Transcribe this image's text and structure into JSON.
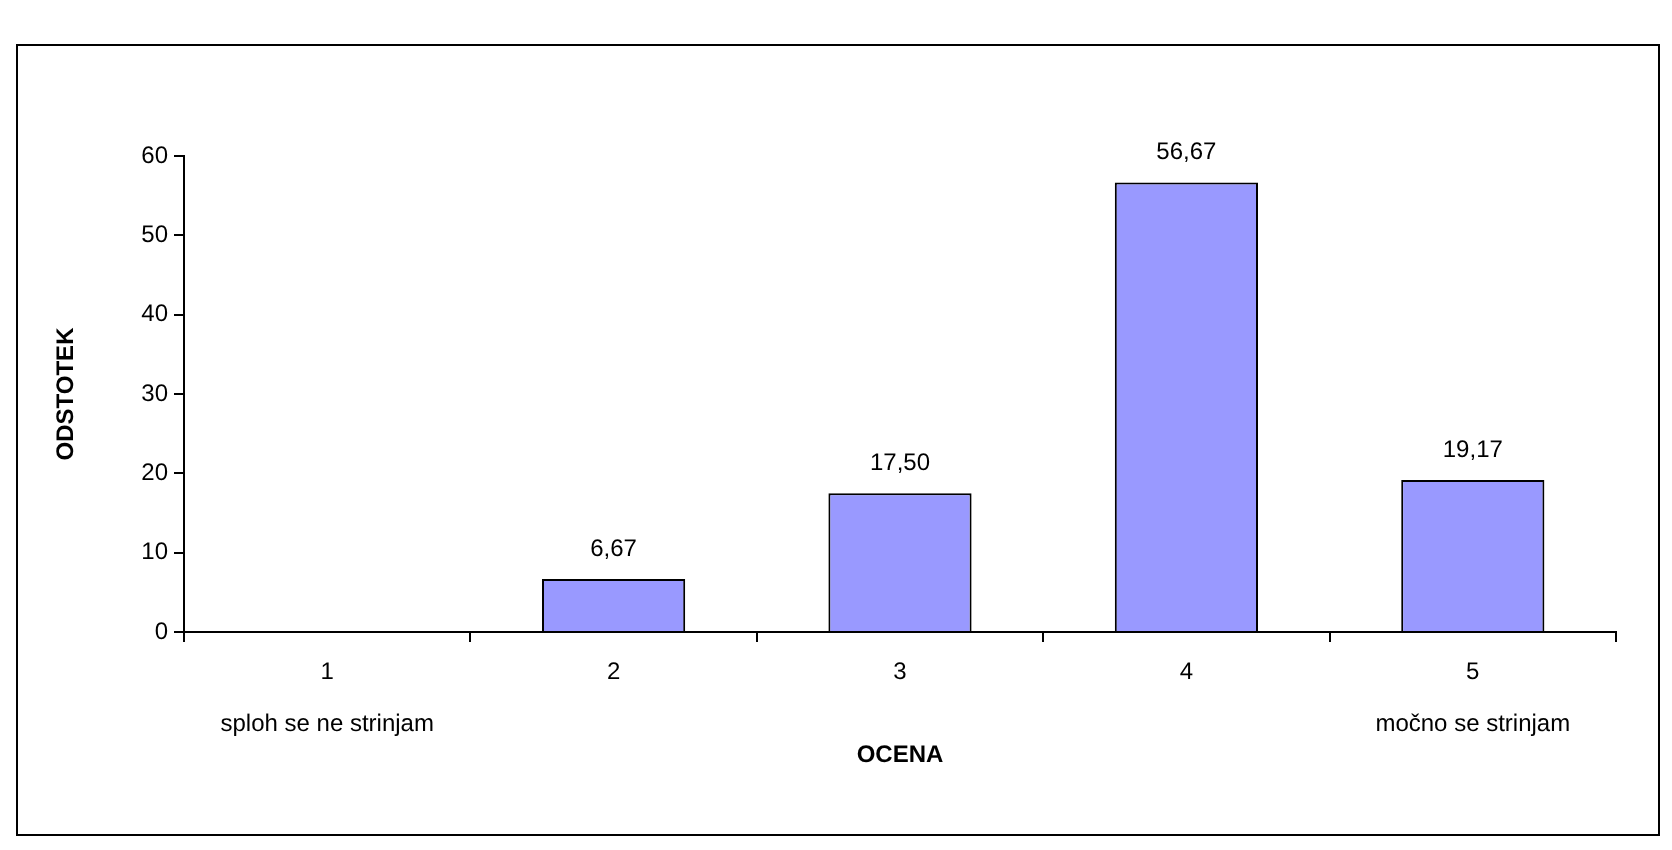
{
  "chart_data": {
    "type": "bar",
    "xlabel": "OCENA",
    "ylabel": "ODSTOTEK",
    "categories": [
      "1",
      "2",
      "3",
      "4",
      "5"
    ],
    "values": [
      0,
      6.67,
      17.5,
      56.67,
      19.17
    ],
    "value_labels": [
      null,
      "6,67",
      "17,50",
      "56,67",
      "19,17"
    ],
    "color": "#9999ff",
    "ylim": [
      0,
      60
    ],
    "yticks": [
      0,
      10,
      20,
      30,
      40,
      50,
      60
    ],
    "grid": false,
    "legend": false,
    "annotations": [
      "sploh se ne strinjam",
      "močno se strinjam"
    ]
  }
}
